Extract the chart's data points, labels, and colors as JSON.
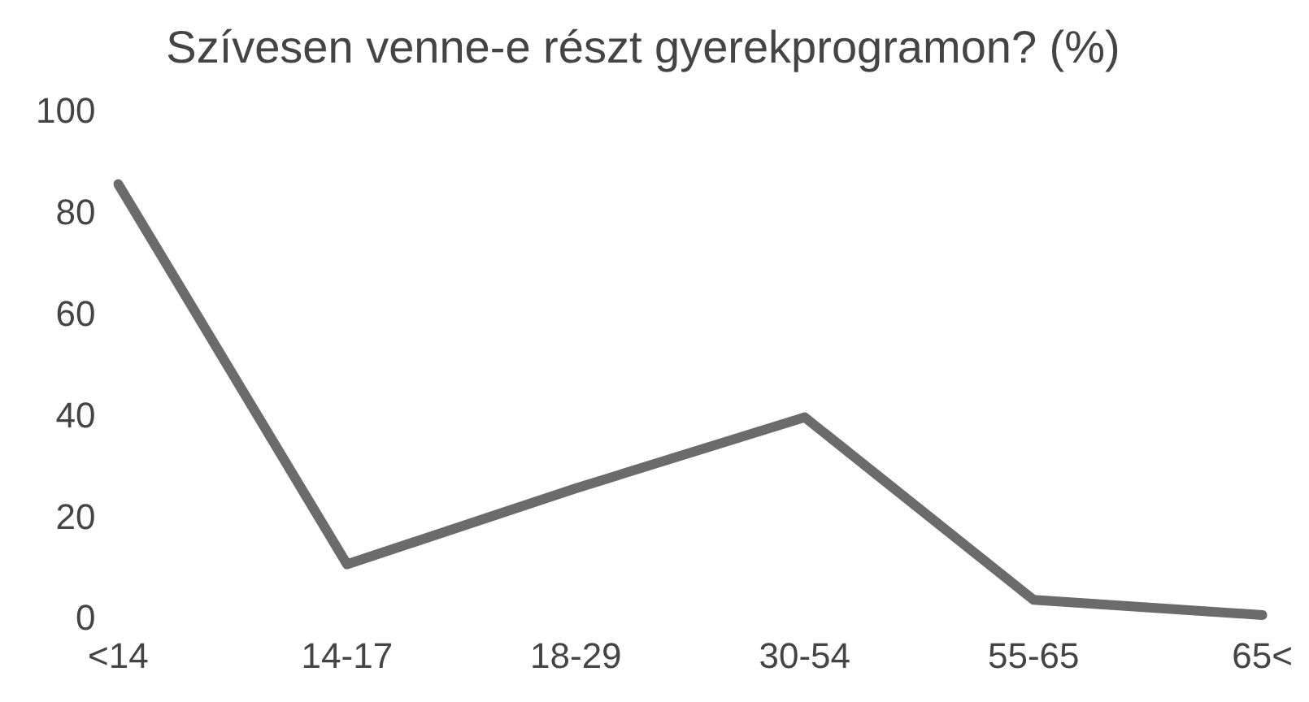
{
  "chart_data": {
    "type": "line",
    "title": "Szívesen venne-e részt gyerekprogramon? (%)",
    "categories": [
      "<14",
      "14-17",
      "18-29",
      "30-54",
      "55-65",
      "65<"
    ],
    "series": [
      {
        "color": "#6b6b6b",
        "values": [
          86,
          11,
          26,
          40,
          4,
          1
        ]
      }
    ],
    "ylim": [
      0,
      100
    ],
    "yticks": [
      0,
      20,
      40,
      60,
      80,
      100
    ],
    "grid": false,
    "legend": false,
    "marker": "none",
    "line_style": "solid"
  }
}
